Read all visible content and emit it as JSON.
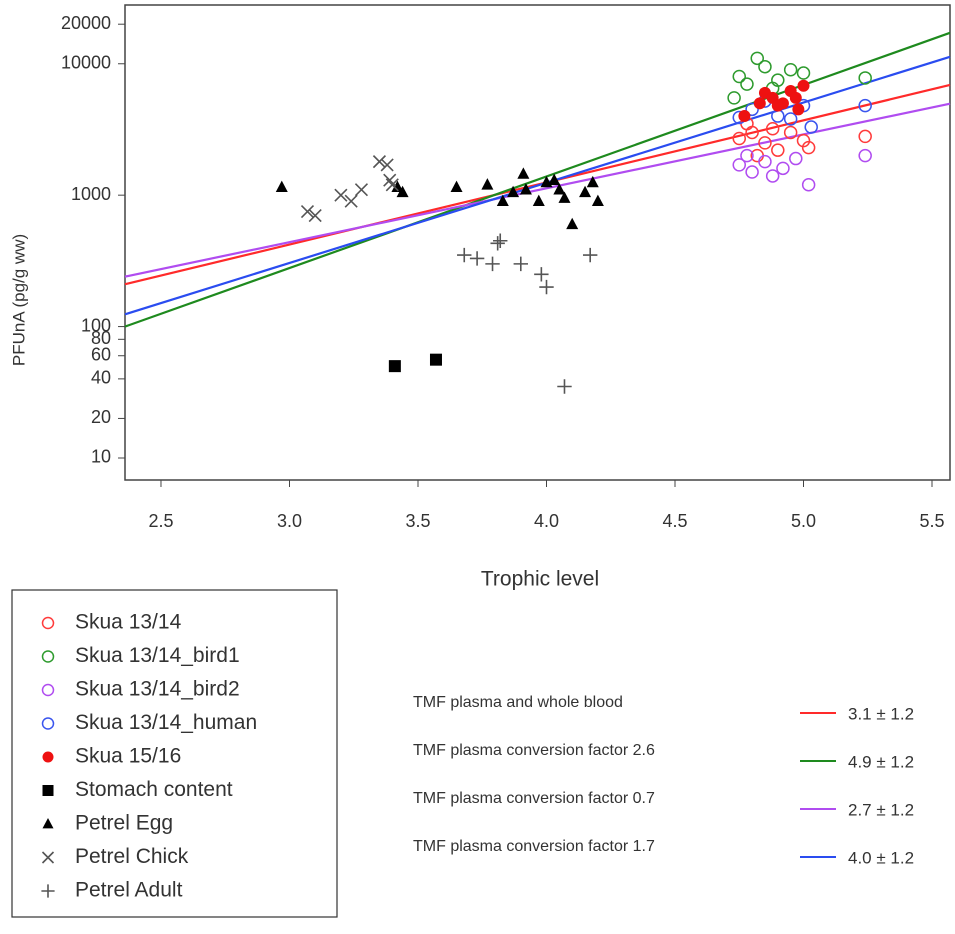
{
  "chart_data": {
    "type": "scatter",
    "xlabel": "Trophic level",
    "ylabel": "PFUnA (pg/g ww)",
    "xlim": [
      2.36,
      5.57
    ],
    "ylim": [
      6.8,
      28000
    ],
    "yscale": "log",
    "xticks": [
      2.5,
      3.0,
      3.5,
      4.0,
      4.5,
      5.0,
      5.5
    ],
    "yticks": [
      10,
      20,
      40,
      60,
      80,
      100,
      1000,
      10000,
      20000
    ],
    "series": [
      {
        "name": "Skua 13/14",
        "type": "scatter",
        "marker": "circle-open",
        "color": "#ff3b3b",
        "x": [
          4.75,
          4.78,
          4.82,
          4.85,
          4.88,
          4.9,
          4.95,
          5.0,
          5.02,
          5.24,
          4.8
        ],
        "values": [
          2700,
          3500,
          2000,
          2500,
          3200,
          2200,
          3000,
          2600,
          2300,
          2800,
          3000
        ]
      },
      {
        "name": "Skua 13/14_bird1",
        "type": "scatter",
        "marker": "circle-open",
        "color": "#2e9b2e",
        "x": [
          4.75,
          4.78,
          4.82,
          4.85,
          4.9,
          4.95,
          5.0,
          5.24,
          4.73,
          4.88
        ],
        "values": [
          8000,
          7000,
          11000,
          9500,
          7500,
          9000,
          8500,
          7800,
          5500,
          6500
        ]
      },
      {
        "name": "Skua 13/14_bird2",
        "type": "scatter",
        "marker": "circle-open",
        "color": "#b04cf0",
        "x": [
          4.75,
          4.8,
          4.85,
          4.88,
          4.92,
          4.97,
          5.02,
          5.24,
          4.78
        ],
        "values": [
          1700,
          1500,
          1800,
          1400,
          1600,
          1900,
          1200,
          2000,
          2000
        ]
      },
      {
        "name": "Skua 13/14_human",
        "type": "scatter",
        "marker": "circle-open",
        "color": "#3a55ee",
        "x": [
          4.75,
          4.8,
          4.85,
          4.9,
          4.95,
          5.0,
          5.24,
          5.03
        ],
        "values": [
          3900,
          4500,
          5200,
          4000,
          3800,
          4800,
          4800,
          3300
        ]
      },
      {
        "name": "Skua 15/16",
        "type": "scatter",
        "marker": "circle",
        "color": "#ee1111",
        "x": [
          4.77,
          4.83,
          4.85,
          4.88,
          4.92,
          4.95,
          4.97,
          5.0,
          4.98,
          4.9
        ],
        "values": [
          4000,
          5000,
          6000,
          5500,
          5000,
          6200,
          5500,
          6800,
          4500,
          4800
        ]
      },
      {
        "name": "Stomach content",
        "type": "scatter",
        "marker": "square",
        "color": "#000000",
        "x": [
          3.41,
          3.57
        ],
        "values": [
          50,
          56
        ]
      },
      {
        "name": "Petrel Egg",
        "type": "scatter",
        "marker": "triangle",
        "color": "#000000",
        "x": [
          2.97,
          3.42,
          3.44,
          3.65,
          3.77,
          3.91,
          3.87,
          3.92,
          3.97,
          4.0,
          4.03,
          4.05,
          4.07,
          4.1,
          4.15,
          4.18,
          4.2,
          3.83
        ],
        "values": [
          1150,
          1150,
          1050,
          1150,
          1200,
          1450,
          1050,
          1100,
          900,
          1250,
          1300,
          1100,
          950,
          600,
          1050,
          1250,
          900,
          900
        ]
      },
      {
        "name": "Petrel Chick",
        "type": "scatter",
        "marker": "x",
        "color": "#555555",
        "x": [
          3.07,
          3.1,
          3.2,
          3.24,
          3.28,
          3.35,
          3.38,
          3.39,
          3.4
        ],
        "values": [
          750,
          700,
          1000,
          900,
          1100,
          1800,
          1700,
          1300,
          1200
        ]
      },
      {
        "name": "Petrel Adult",
        "type": "scatter",
        "marker": "plus",
        "color": "#555555",
        "x": [
          3.68,
          3.73,
          3.79,
          3.81,
          3.82,
          3.9,
          3.98,
          4.0,
          4.07,
          4.17
        ],
        "values": [
          350,
          330,
          300,
          430,
          450,
          300,
          250,
          200,
          35,
          350
        ]
      },
      {
        "name": "TMF plasma and whole blood",
        "type": "line",
        "color": "#ff2a2a",
        "tmf": "3.1 ± 1.2",
        "x": [
          2.36,
          5.57
        ],
        "values": [
          210,
          6900
        ]
      },
      {
        "name": "TMF plasma conversion factor 2.6",
        "type": "line",
        "color": "#1e8a1e",
        "tmf": "4.9 ± 1.2",
        "x": [
          2.36,
          5.57
        ],
        "values": [
          100,
          17200
        ]
      },
      {
        "name": "TMF plasma conversion factor 0.7",
        "type": "line",
        "color": "#b04cf0",
        "tmf": "2.7 ± 1.2",
        "x": [
          2.36,
          5.57
        ],
        "values": [
          240,
          4970
        ]
      },
      {
        "name": "TMF plasma conversion factor 1.7",
        "type": "line",
        "color": "#2a4cf0",
        "tmf": "4.0 ± 1.2",
        "x": [
          2.36,
          5.57
        ],
        "values": [
          124,
          11300
        ]
      }
    ]
  }
}
